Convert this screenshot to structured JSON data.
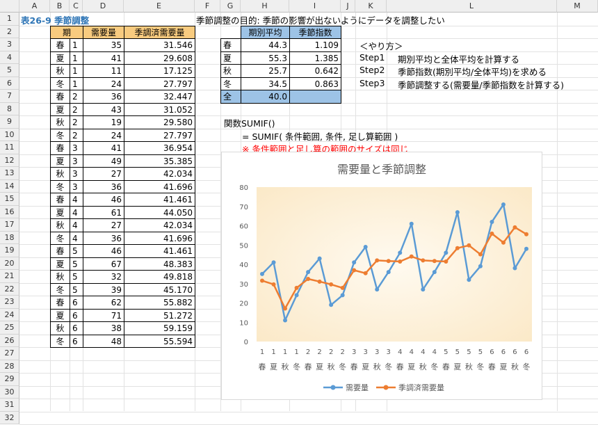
{
  "columns": [
    "A",
    "B",
    "C",
    "D",
    "E",
    "F",
    "G",
    "H",
    "I",
    "J",
    "K",
    "L",
    "M"
  ],
  "rows": [
    "1",
    "2",
    "3",
    "4",
    "5",
    "6",
    "7",
    "8",
    "9",
    "10",
    "11",
    "12",
    "13",
    "14",
    "15",
    "16",
    "17",
    "18",
    "19",
    "20",
    "21",
    "22",
    "23",
    "24",
    "25",
    "26",
    "27",
    "28",
    "29",
    "30",
    "31",
    "32"
  ],
  "title": "表26-9 季節調整",
  "headline": "季節調整の目的: 季節の影響が出ないようにデータを調整したい",
  "table": {
    "headers": [
      "期",
      "需要量",
      "季調済需要量"
    ],
    "rows": [
      [
        "春",
        "1",
        "35",
        "31.546"
      ],
      [
        "夏",
        "1",
        "41",
        "29.608"
      ],
      [
        "秋",
        "1",
        "11",
        "17.125"
      ],
      [
        "冬",
        "1",
        "24",
        "27.797"
      ],
      [
        "春",
        "2",
        "36",
        "32.447"
      ],
      [
        "夏",
        "2",
        "43",
        "31.052"
      ],
      [
        "秋",
        "2",
        "19",
        "29.580"
      ],
      [
        "冬",
        "2",
        "24",
        "27.797"
      ],
      [
        "春",
        "3",
        "41",
        "36.954"
      ],
      [
        "夏",
        "3",
        "49",
        "35.385"
      ],
      [
        "秋",
        "3",
        "27",
        "42.034"
      ],
      [
        "冬",
        "3",
        "36",
        "41.696"
      ],
      [
        "春",
        "4",
        "46",
        "41.461"
      ],
      [
        "夏",
        "4",
        "61",
        "44.050"
      ],
      [
        "秋",
        "4",
        "27",
        "42.034"
      ],
      [
        "冬",
        "4",
        "36",
        "41.696"
      ],
      [
        "春",
        "5",
        "46",
        "41.461"
      ],
      [
        "夏",
        "5",
        "67",
        "48.383"
      ],
      [
        "秋",
        "5",
        "32",
        "49.818"
      ],
      [
        "冬",
        "5",
        "39",
        "45.170"
      ],
      [
        "春",
        "6",
        "62",
        "55.882"
      ],
      [
        "夏",
        "6",
        "71",
        "51.272"
      ],
      [
        "秋",
        "6",
        "38",
        "59.159"
      ],
      [
        "冬",
        "6",
        "48",
        "55.594"
      ]
    ]
  },
  "seasonal": {
    "headers": [
      "期別平均",
      "季節指数"
    ],
    "rows": [
      [
        "春",
        "44.3",
        "1.109"
      ],
      [
        "夏",
        "55.3",
        "1.385"
      ],
      [
        "秋",
        "25.7",
        "0.642"
      ],
      [
        "冬",
        "34.5",
        "0.863"
      ]
    ],
    "total": [
      "全",
      "40.0",
      ""
    ]
  },
  "steps": {
    "heading": "＜やり方＞",
    "items": [
      [
        "Step1",
        "期別平均と全体平均を計算する"
      ],
      [
        "Step2",
        "季節指数(期別平均/全体平均)を求める"
      ],
      [
        "Step3",
        "季節調整する(需要量/季節指数を計算する)"
      ]
    ]
  },
  "sumif": {
    "line1": "関数SUMIF()",
    "line2": "= SUMIF( 条件範囲, 条件, 足し算範囲 )",
    "line3": "※ 条件範囲と足し算の範囲のサイズは同じ"
  },
  "colors": {
    "series1": "#5b9bd5",
    "series2": "#ed7d31",
    "title": "#2e75b6",
    "note": "#ff0000",
    "header_fill": "#f8cb7f",
    "total_fill": "#9dc3e6"
  },
  "chart_data": {
    "type": "line",
    "title": "需要量と季節調整",
    "x_numbers": [
      "1",
      "1",
      "1",
      "1",
      "2",
      "2",
      "2",
      "2",
      "3",
      "3",
      "3",
      "3",
      "4",
      "4",
      "4",
      "4",
      "5",
      "5",
      "5",
      "5",
      "6",
      "6",
      "6",
      "6"
    ],
    "x_seasons": [
      "春",
      "夏",
      "秋",
      "冬",
      "春",
      "夏",
      "秋",
      "冬",
      "春",
      "夏",
      "秋",
      "冬",
      "春",
      "夏",
      "秋",
      "冬",
      "春",
      "夏",
      "秋",
      "冬",
      "春",
      "夏",
      "秋",
      "冬"
    ],
    "yticks": [
      "80",
      "70",
      "60",
      "50",
      "40",
      "30",
      "20",
      "10",
      "0"
    ],
    "ylim": [
      0,
      80
    ],
    "legend_position": "bottom",
    "grid": false,
    "series": [
      {
        "name": "需要量",
        "color": "#5b9bd5",
        "values": [
          35,
          41,
          11,
          24,
          36,
          43,
          19,
          24,
          41,
          49,
          27,
          36,
          46,
          61,
          27,
          36,
          46,
          67,
          32,
          39,
          62,
          71,
          38,
          48
        ]
      },
      {
        "name": "季調済需要量",
        "color": "#ed7d31",
        "values": [
          31.546,
          29.608,
          17.125,
          27.797,
          32.447,
          31.052,
          29.58,
          27.797,
          36.954,
          35.385,
          42.034,
          41.696,
          41.461,
          44.05,
          42.034,
          41.696,
          41.461,
          48.383,
          49.818,
          45.17,
          55.882,
          51.272,
          59.159,
          55.594
        ]
      }
    ]
  }
}
